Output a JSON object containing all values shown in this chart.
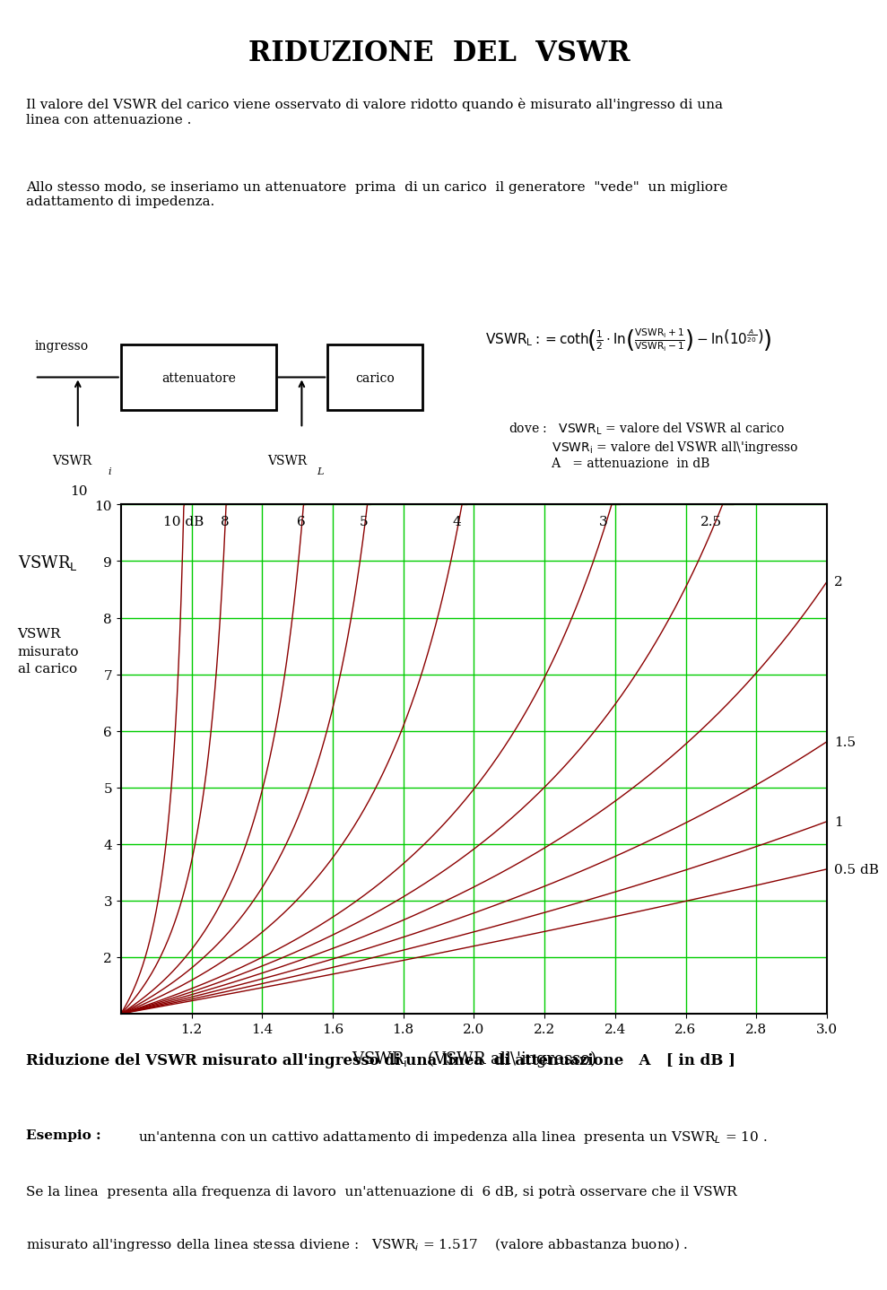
{
  "title": "RIDUZIONE  DEL  VSWR",
  "intro_text1": "Il valore del VSWR del carico viene osservato di valore ridotto quando è misurato all'ingresso di una\nlinea con attenuazione .",
  "intro_text2": "Allo stesso modo, se inseriamo un attenuatore  prima  di un carico  il generatore  \"vede\"  un migliore\nadattamento di impedenza.",
  "attenuation_values_db": [
    0.5,
    1.0,
    1.5,
    2.0,
    2.5,
    3.0,
    4.0,
    5.0,
    6.0,
    8.0,
    10.0
  ],
  "curve_labels": {
    "0.5": "0.5 dB",
    "1.0": "1",
    "1.5": "1.5",
    "2.0": "2",
    "2.5": "2.5",
    "3.0": "3",
    "4.0": "4",
    "5.0": "5",
    "6.0": "6",
    "8.0": "8",
    "10.0": "10 dB"
  },
  "x_min": 1.0,
  "x_max": 3.0,
  "y_min": 1.0,
  "y_max": 10.0,
  "x_ticks": [
    1.2,
    1.4,
    1.6,
    1.8,
    2.0,
    2.2,
    2.4,
    2.6,
    2.8,
    3.0
  ],
  "y_ticks": [
    2,
    3,
    4,
    5,
    6,
    7,
    8,
    9,
    10
  ],
  "curve_color": "#8B0000",
  "grid_color": "#00CC00",
  "xlabel": "VSWR$_i$    (VSWR all'ingresso)",
  "ylabel_line1": "VSWR",
  "ylabel_line2": "L",
  "ylabel_left1": "VSWR",
  "ylabel_left2": "misurato",
  "ylabel_left3": "al carico",
  "bottom_text1": "Riduzione del VSWR misurato all'ingresso di una linea  di attenuazione   A   [ in dB ]",
  "bottom_text2_bold": "Esempio :",
  "bottom_text2": " un'antenna con un cattivo adattamento di impedenza alla linea  presenta un VSWR",
  "bottom_text2b": " = 10 .",
  "bottom_text3": "Se la linea  presenta alla frequenza di lavoro  un'attenuazione di  6 dB, si potrà osservare che il VSWR",
  "bottom_text4": "misurato all'ingresso della linea stessa diviene :   VSWR",
  "bottom_text4b": " = 1.517    (valore abbastanza buono) .",
  "bg_color": "#FFFFFF"
}
